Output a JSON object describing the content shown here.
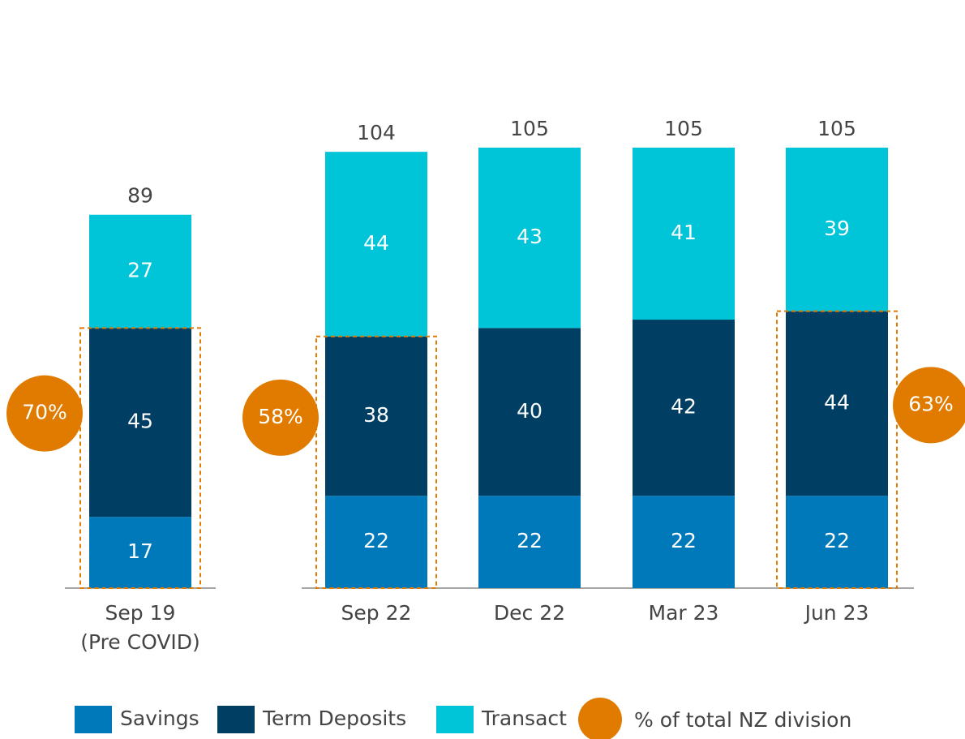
{
  "chart_data": {
    "type": "stacked_bar",
    "categories": [
      [
        "Sep 19",
        "(Pre COVID)"
      ],
      [
        "Sep 22"
      ],
      [
        "Dec 22"
      ],
      [
        "Mar 23"
      ],
      [
        "Jun 23"
      ]
    ],
    "series": [
      {
        "name": "Savings",
        "color": "#0079ba",
        "values": [
          17,
          22,
          22,
          22,
          22
        ]
      },
      {
        "name": "Term Deposits",
        "color": "#003f63",
        "values": [
          45,
          38,
          40,
          42,
          44
        ]
      },
      {
        "name": "Transact",
        "color": "#00c4d8",
        "values": [
          27,
          44,
          43,
          41,
          39
        ]
      }
    ],
    "totals": [
      89,
      104,
      105,
      105,
      105
    ],
    "share": {
      "name": "% of total NZ division",
      "color": "#e07b00",
      "values": [
        70,
        58,
        null,
        null,
        63
      ],
      "value_labels": [
        "70%",
        "58%",
        null,
        null,
        "63%"
      ]
    }
  }
}
